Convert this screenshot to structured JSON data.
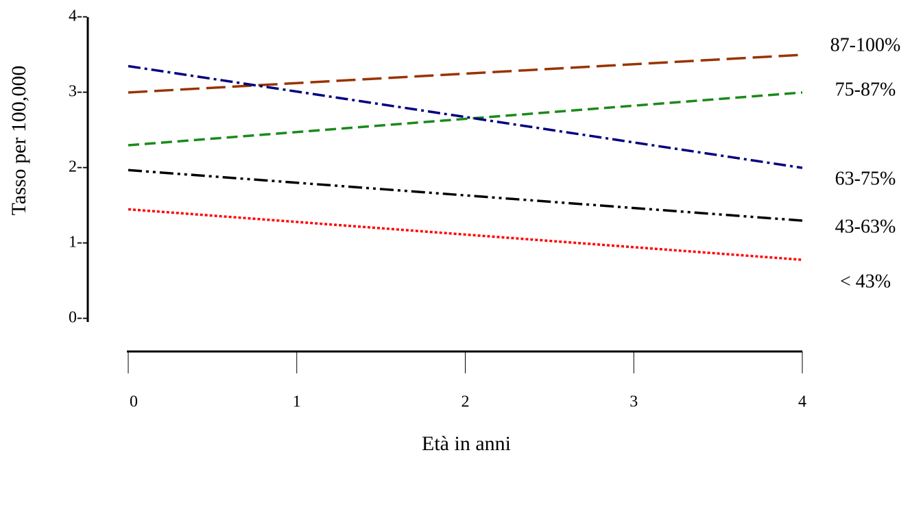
{
  "chart_data": {
    "type": "line",
    "x_label": "Età in anni",
    "y_label": "Tasso per 100,000",
    "x": [
      0,
      4
    ],
    "xlim": [
      0,
      4
    ],
    "xticks": [
      0,
      1,
      2,
      3,
      4
    ],
    "ylim": [
      0,
      4
    ],
    "yticks": [
      {
        "value": 0,
        "label": "0--"
      },
      {
        "value": 1,
        "label": "1--"
      },
      {
        "value": 2,
        "label": "2--"
      },
      {
        "value": 3,
        "label": "3--"
      },
      {
        "value": 4,
        "label": "4--"
      }
    ],
    "series": [
      {
        "name": "87-100%",
        "color": "#993300",
        "values": [
          3.0,
          3.5
        ]
      },
      {
        "name": "75-87%",
        "color": "#1a8a1a",
        "values": [
          2.3,
          3.0
        ]
      },
      {
        "name": "63-75%",
        "color": "#000080",
        "values": [
          3.35,
          2.0
        ]
      },
      {
        "name": "43-63%",
        "color": "#000000",
        "values": [
          1.97,
          1.3
        ]
      },
      {
        "name": "< 43%",
        "color": "#ff0000",
        "values": [
          1.45,
          0.78
        ]
      }
    ]
  }
}
